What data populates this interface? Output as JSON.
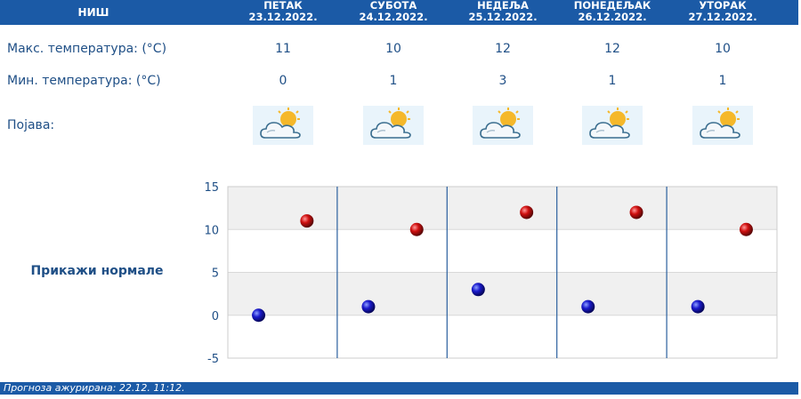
{
  "header": {
    "city": "НИШ",
    "days": [
      {
        "name": "ПЕТАК",
        "date": "23.12.2022."
      },
      {
        "name": "СУБОТА",
        "date": "24.12.2022."
      },
      {
        "name": "НЕДЕЉА",
        "date": "25.12.2022."
      },
      {
        "name": "ПОНЕДЕЉАК",
        "date": "26.12.2022."
      },
      {
        "name": "УТОРАК",
        "date": "27.12.2022."
      }
    ]
  },
  "rows": {
    "max_label": "Макс. температура: (°C)",
    "min_label": "Мин. температура: (°C)",
    "phenomenon_label": "Појава:",
    "max_values": [
      "11",
      "10",
      "12",
      "12",
      "10"
    ],
    "min_values": [
      "0",
      "1",
      "3",
      "1",
      "1"
    ],
    "icons": [
      "partly-cloudy-sun-icon",
      "partly-cloudy-sun-icon",
      "partly-cloudy-sun-icon",
      "partly-cloudy-sun-icon",
      "partly-cloudy-sun-icon"
    ]
  },
  "normals_link": "Прикажи нормале",
  "footer": {
    "updated": "Прогноза ажурирана:  22.12. 11:12."
  },
  "chart_data": {
    "type": "scatter",
    "ylim": [
      -5,
      15
    ],
    "yticks": [
      15,
      10,
      5,
      0,
      -5
    ],
    "categories": [
      "23.12.2022.",
      "24.12.2022.",
      "25.12.2022.",
      "26.12.2022.",
      "27.12.2022."
    ],
    "series": [
      {
        "color": "#1010c0",
        "values": [
          0,
          1,
          3,
          1,
          1
        ]
      },
      {
        "color": "#c01010",
        "values": [
          11,
          10,
          12,
          12,
          10
        ]
      }
    ],
    "grid": true
  }
}
